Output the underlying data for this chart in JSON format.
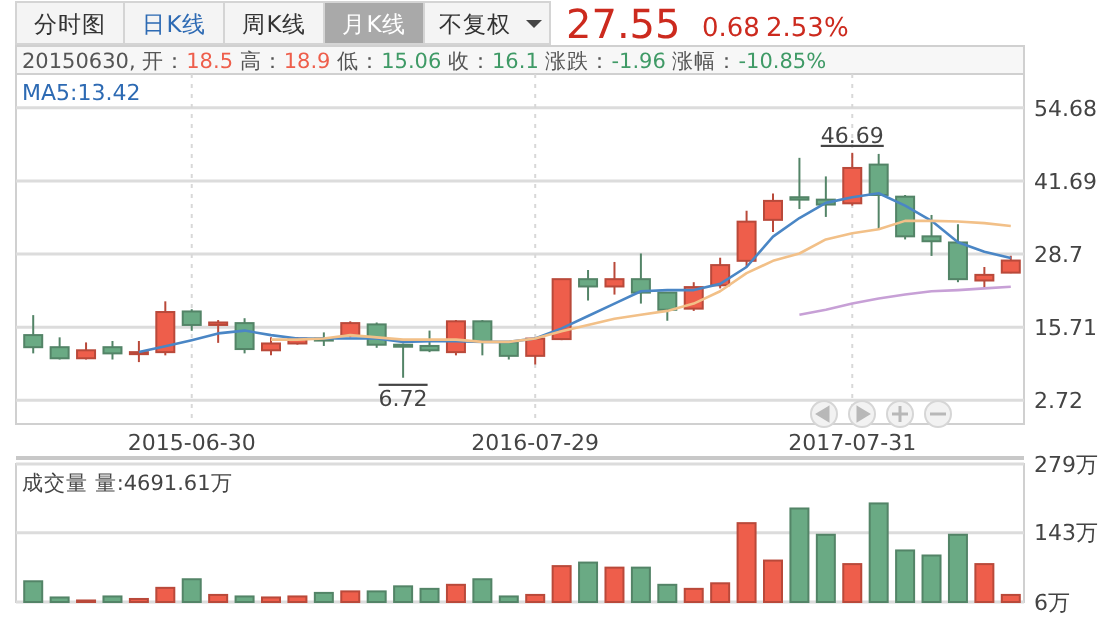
{
  "chart_data": [
    {
      "type": "candlestick",
      "categories": [
        null,
        null,
        null,
        null,
        null,
        null,
        "2015-06-30",
        null,
        null,
        null,
        null,
        null,
        null,
        null,
        null,
        null,
        null,
        null,
        null,
        "2016-07-29",
        null,
        null,
        null,
        null,
        null,
        null,
        null,
        null,
        null,
        null,
        null,
        "2017-07-31",
        null,
        null,
        null,
        null,
        null,
        null
      ],
      "ohlc": [
        [
          14.3,
          17.85,
          11.05,
          12.15
        ],
        [
          12.15,
          13.9,
          9.96,
          10.18
        ],
        [
          10.18,
          13.0,
          9.96,
          11.6
        ],
        [
          12.15,
          13.25,
          9.96,
          11.05
        ],
        [
          11.05,
          13.25,
          9.5,
          11.27
        ],
        [
          11.27,
          20.3,
          10.7,
          18.4
        ],
        [
          18.5,
          18.9,
          15.06,
          16.1
        ],
        [
          16.1,
          16.97,
          12.92,
          16.54
        ],
        [
          16.43,
          17.3,
          11.05,
          11.82
        ],
        [
          11.6,
          13.9,
          10.7,
          12.81
        ],
        [
          12.81,
          13.9,
          12.6,
          13.68
        ],
        [
          13.68,
          14.78,
          12.37,
          13.47
        ],
        [
          14.23,
          16.75,
          13.9,
          16.43
        ],
        [
          16.2,
          16.54,
          12.04,
          12.59
        ],
        [
          12.59,
          12.8,
          6.72,
          12.4
        ],
        [
          12.37,
          15.1,
          11.27,
          11.6
        ],
        [
          11.27,
          16.97,
          10.7,
          16.75
        ],
        [
          16.75,
          16.97,
          10.7,
          13.25
        ],
        [
          13.03,
          13.25,
          9.96,
          10.61
        ],
        [
          10.61,
          13.68,
          9.08,
          13.68
        ],
        [
          13.59,
          24.24,
          13.4,
          24.24
        ],
        [
          24.24,
          25.87,
          20.44,
          22.94
        ],
        [
          22.94,
          27.3,
          21.5,
          24.24
        ],
        [
          24.24,
          28.8,
          19.9,
          21.85
        ],
        [
          21.85,
          21.85,
          16.85,
          18.8
        ],
        [
          19.0,
          23.7,
          18.6,
          22.83
        ],
        [
          23.15,
          28.05,
          22.6,
          26.74
        ],
        [
          27.5,
          36.4,
          26.4,
          34.46
        ],
        [
          34.78,
          39.46,
          32.6,
          38.15
        ],
        [
          38.8,
          45.8,
          36.7,
          38.37
        ],
        [
          38.37,
          42.5,
          35.3,
          37.5
        ],
        [
          37.72,
          46.69,
          37.3,
          44.0
        ],
        [
          44.6,
          46.5,
          33.15,
          39.2
        ],
        [
          38.9,
          39.2,
          31.3,
          31.85
        ],
        [
          31.85,
          35.65,
          28.37,
          30.98
        ],
        [
          30.76,
          34.0,
          23.7,
          24.24
        ],
        [
          24.0,
          26.4,
          22.6,
          25.0
        ],
        [
          25.4,
          28.4,
          25.3,
          27.55
        ]
      ],
      "colors": [
        "#6aaa84",
        "#6aaa84",
        "#ee5e4b",
        "#6aaa84",
        "#ee5e4b",
        "#ee5e4b",
        "#6aaa84",
        "#ee5e4b",
        "#6aaa84",
        "#ee5e4b",
        "#ee5e4b",
        "#6aaa84",
        "#ee5e4b",
        "#6aaa84",
        "#6aaa84",
        "#6aaa84",
        "#ee5e4b",
        "#6aaa84",
        "#6aaa84",
        "#ee5e4b",
        "#ee5e4b",
        "#6aaa84",
        "#ee5e4b",
        "#6aaa84",
        "#6aaa84",
        "#ee5e4b",
        "#ee5e4b",
        "#ee5e4b",
        "#ee5e4b",
        "#6aaa84",
        "#6aaa84",
        "#ee5e4b",
        "#6aaa84",
        "#6aaa84",
        "#6aaa84",
        "#6aaa84",
        "#ee5e4b",
        "#ee5e4b"
      ],
      "series": [
        {
          "type": "line",
          "color": "#4a86c5",
          "values": [
            null,
            null,
            null,
            null,
            11.3,
            12.3,
            13.4,
            14.6,
            15.1,
            14.3,
            13.7,
            13.7,
            13.7,
            13.7,
            13.1,
            13.2,
            13.2,
            13.1,
            13.1,
            13.7,
            15.5,
            17.7,
            19.9,
            22.1,
            22.3,
            22.3,
            23.4,
            26.4,
            31.8,
            35.1,
            37.8,
            38.8,
            39.5,
            37.3,
            34.6,
            30.8,
            29.1,
            28.0
          ]
        },
        {
          "type": "line",
          "color": "#f2c088",
          "values": [
            null,
            null,
            null,
            null,
            null,
            null,
            null,
            null,
            null,
            13.5,
            13.5,
            13.7,
            14.3,
            13.9,
            13.5,
            13.5,
            13.5,
            13.1,
            13.1,
            13.7,
            15.0,
            16.1,
            17.2,
            17.9,
            18.6,
            19.9,
            22.1,
            25.3,
            27.5,
            28.8,
            31.3,
            32.4,
            33.1,
            34.6,
            34.6,
            34.5,
            34.2,
            33.7
          ]
        },
        {
          "type": "line",
          "color": "#c7a0d6",
          "values": [
            null,
            null,
            null,
            null,
            null,
            null,
            null,
            null,
            null,
            null,
            null,
            null,
            null,
            null,
            null,
            null,
            null,
            null,
            null,
            null,
            null,
            null,
            null,
            null,
            null,
            null,
            null,
            null,
            null,
            17.9,
            18.8,
            19.9,
            20.8,
            21.5,
            22.1,
            22.3,
            22.6,
            22.9
          ]
        }
      ],
      "ylim": [
        -1.5,
        60.7
      ],
      "yticks": [
        2.72,
        15.71,
        28.7,
        41.69,
        54.68
      ],
      "grid": true,
      "annotations": [
        "分时图",
        "日K线",
        "周K线",
        "月K线",
        "不复权",
        "27.55",
        "0.68",
        "2.53%",
        "20150630, 开：",
        "18.5",
        " 高：",
        "18.9",
        " 低：",
        "15.06",
        " 收：",
        "16.1",
        " 涨跌：",
        "-1.96",
        " 涨幅：",
        "-10.85%",
        "MA5:13.42",
        {
          "text": "46.69",
          "x": "2017-07-31",
          "y": 46.69
        },
        {
          "text": "6.72",
          "y": 6.72
        }
      ]
    },
    {
      "type": "bar",
      "categories": [
        null,
        null,
        null,
        null,
        null,
        null,
        null,
        null,
        null,
        null,
        null,
        null,
        null,
        null,
        null,
        null,
        null,
        null,
        null,
        null,
        null,
        null,
        null,
        null,
        null,
        null,
        null,
        null,
        null,
        null,
        null,
        null,
        null,
        null,
        null,
        null,
        null,
        null
      ],
      "values": [
        47,
        15,
        9,
        17,
        12,
        34,
        51,
        20,
        17,
        15,
        17,
        24,
        27,
        27,
        37,
        32,
        40,
        51,
        17,
        20,
        77,
        84,
        74,
        74,
        40,
        32,
        43,
        162,
        88,
        191,
        139,
        81,
        201,
        108,
        98,
        139,
        81,
        20
      ],
      "colors": [
        "#6aaa84",
        "#6aaa84",
        "#ee5e4b",
        "#6aaa84",
        "#ee5e4b",
        "#ee5e4b",
        "#6aaa84",
        "#ee5e4b",
        "#6aaa84",
        "#ee5e4b",
        "#ee5e4b",
        "#6aaa84",
        "#ee5e4b",
        "#6aaa84",
        "#6aaa84",
        "#6aaa84",
        "#ee5e4b",
        "#6aaa84",
        "#6aaa84",
        "#ee5e4b",
        "#ee5e4b",
        "#6aaa84",
        "#ee5e4b",
        "#6aaa84",
        "#6aaa84",
        "#ee5e4b",
        "#ee5e4b",
        "#ee5e4b",
        "#ee5e4b",
        "#6aaa84",
        "#6aaa84",
        "#ee5e4b",
        "#6aaa84",
        "#6aaa84",
        "#6aaa84",
        "#6aaa84",
        "#ee5e4b",
        "#ee5e4b"
      ],
      "ylim": [
        6,
        279
      ],
      "yticks": [
        {
          "value": 6,
          "label": "6万"
        },
        {
          "value": 143,
          "label": "143万"
        },
        {
          "value": 279,
          "label": "279万"
        }
      ],
      "grid": "y",
      "tick_labels": "y",
      "annotations": [
        "成交量 量:4691.61万"
      ]
    }
  ]
}
